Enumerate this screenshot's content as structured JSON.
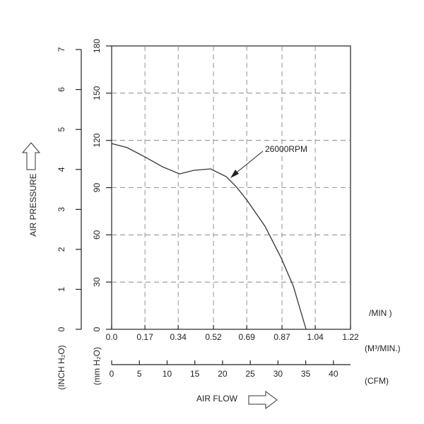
{
  "chart_data": {
    "type": "line",
    "y_label": "AIR PRESSURE",
    "x_label": "AIR FLOW",
    "x_unit": "(M³/MIN.)",
    "x2_unit": "(CFM)",
    "y_unit": "(mm H₂O)",
    "y2_unit": "(INCH H₂O)",
    "clipped_label": "/MIN )",
    "x": [
      0,
      0.079,
      0.17,
      0.26,
      0.347,
      0.42,
      0.505,
      0.585,
      0.639,
      0.693,
      0.783,
      0.866,
      0.928,
      0.993
    ],
    "series": [
      {
        "name": "26000RPM",
        "color": "#333333",
        "values": [
          118,
          115.4,
          109.5,
          103.2,
          98.7,
          101,
          101.9,
          97,
          90.2,
          81.7,
          65.5,
          45.3,
          27.4,
          0
        ]
      }
    ],
    "xlim": [
      0,
      1.22
    ],
    "xticks": [
      {
        "value": 0,
        "label": "0.0"
      },
      0.17,
      0.34,
      0.52,
      0.69,
      0.87,
      1.04,
      1.22
    ],
    "ylim": [
      0,
      180
    ],
    "yticks": [
      0,
      30,
      60,
      90,
      120,
      150,
      180
    ],
    "y2lim": [
      0,
      7.09
    ],
    "y2ticks": [
      0,
      1,
      2,
      3,
      4,
      5,
      6,
      7
    ],
    "x2lim": [
      0,
      43.08
    ],
    "x2ticks": [
      0,
      5,
      10,
      15,
      20,
      25,
      30,
      35,
      40
    ],
    "grid": true
  }
}
